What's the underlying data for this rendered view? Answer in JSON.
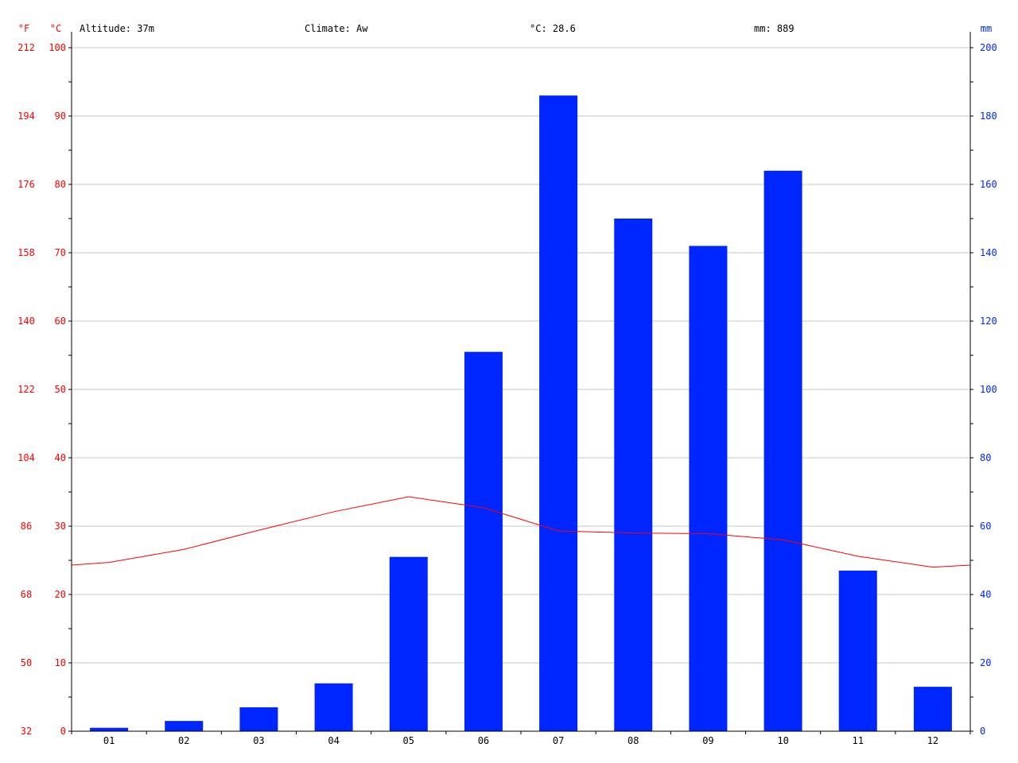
{
  "header": {
    "altitude": "Altitude: 37m",
    "climate": "Climate: Aw",
    "temp_avg": "°C: 28.6",
    "precip_total": "mm: 889"
  },
  "chart_data": {
    "type": "bar+line",
    "categories": [
      "01",
      "02",
      "03",
      "04",
      "05",
      "06",
      "07",
      "08",
      "09",
      "10",
      "11",
      "12"
    ],
    "series": [
      {
        "name": "mm",
        "type": "bar",
        "axis": "right",
        "color": "#0026ff",
        "values": [
          1,
          3,
          7,
          14,
          51,
          111,
          186,
          150,
          142,
          164,
          47,
          13
        ]
      },
      {
        "name": "°C",
        "type": "line",
        "axis": "left",
        "color": "#ff0000",
        "values": [
          24.7,
          26.6,
          29.4,
          32.1,
          34.3,
          32.7,
          29.3,
          29.0,
          28.9,
          28.0,
          25.6,
          24.0
        ],
        "edge_values": [
          24.3,
          24.3
        ]
      }
    ],
    "left_axis_celsius": {
      "label": "°C",
      "ticks": [
        "0",
        "10",
        "20",
        "30",
        "40",
        "50",
        "60",
        "70",
        "80",
        "90",
        "100"
      ],
      "range": [
        0,
        100
      ]
    },
    "left_axis_fahrenheit": {
      "label": "°F",
      "ticks": [
        "32",
        "50",
        "68",
        "86",
        "104",
        "122",
        "140",
        "158",
        "176",
        "194",
        "212"
      ]
    },
    "right_axis": {
      "label": "mm",
      "ticks": [
        "0",
        "20",
        "40",
        "60",
        "80",
        "100",
        "120",
        "140",
        "160",
        "180",
        "200"
      ],
      "range": [
        0,
        200
      ]
    },
    "grid": true,
    "colors": {
      "temperature": "#ff0000",
      "precipitation": "#0026ff",
      "grid": "#c8c8c8"
    }
  }
}
